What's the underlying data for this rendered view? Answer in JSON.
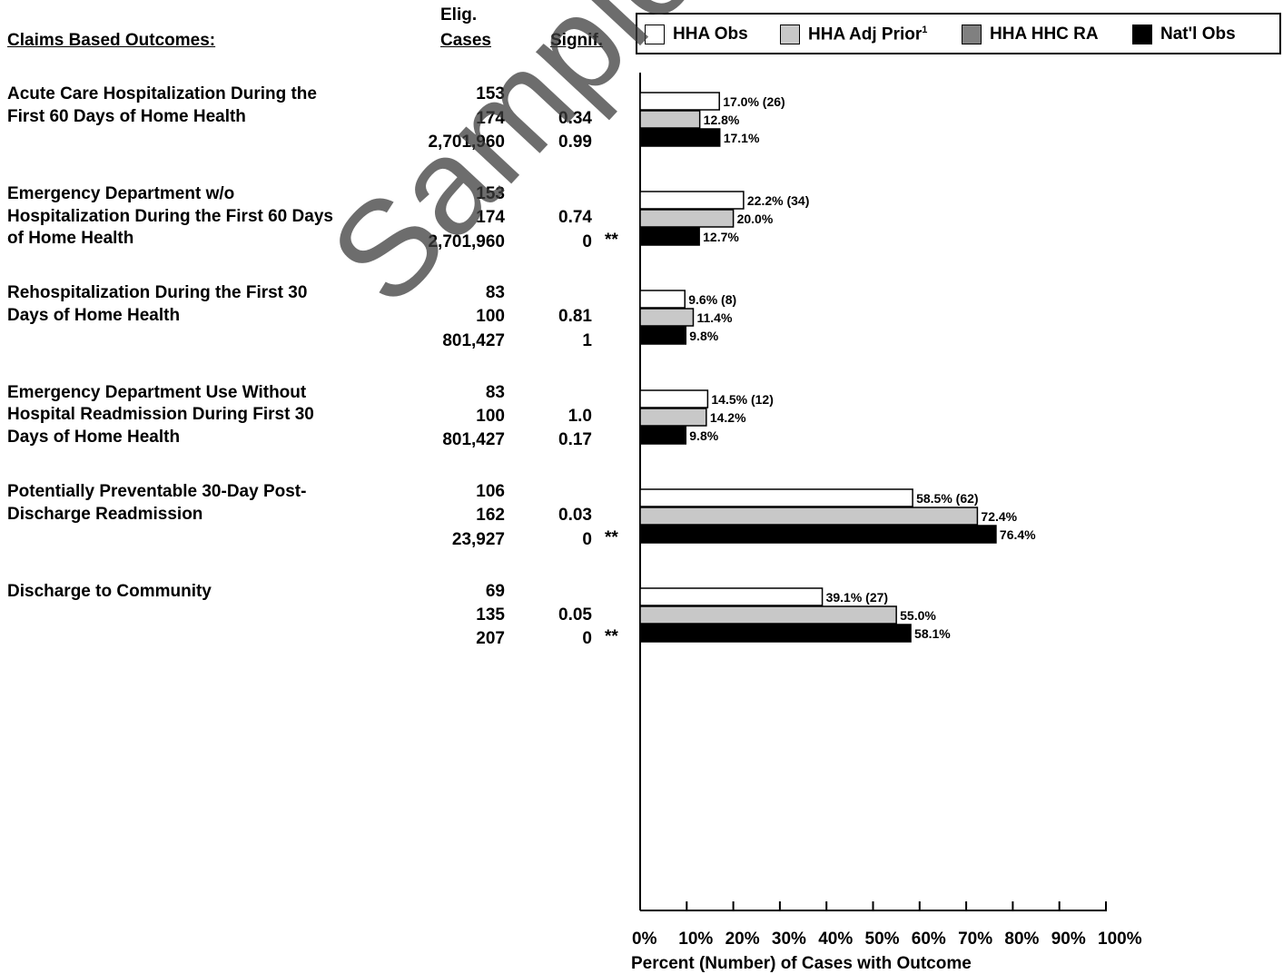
{
  "headers": {
    "outcomes": "Claims Based Outcomes:",
    "elig_line1": "Elig.",
    "elig_line2": "Cases",
    "signif": "Signif."
  },
  "legend": [
    {
      "label": "HHA Obs",
      "sup": "",
      "color": "#ffffff"
    },
    {
      "label": "HHA Adj Prior",
      "sup": "1",
      "color": "#c8c8c8"
    },
    {
      "label": "HHA HHC RA",
      "sup": "",
      "color": "#808080"
    },
    {
      "label": "Nat'l Obs",
      "sup": "",
      "color": "#000000"
    }
  ],
  "outcomes": [
    {
      "name_lines": [
        "Acute Care Hospitalization During the",
        "First 60 Days of Home Health"
      ],
      "elig_cases": [
        "153",
        "174",
        "2,701,960"
      ],
      "signif": [
        "",
        "0.34",
        "0.99"
      ],
      "stars": [
        "",
        "",
        ""
      ]
    },
    {
      "name_lines": [
        "Emergency Department w/o",
        "Hospitalization During the First 60 Days",
        "of Home Health"
      ],
      "elig_cases": [
        "153",
        "174",
        "2,701,960"
      ],
      "signif": [
        "",
        "0.74",
        "0"
      ],
      "stars": [
        "",
        "",
        "**"
      ]
    },
    {
      "name_lines": [
        "Rehospitalization During the First 30",
        "Days of Home Health"
      ],
      "elig_cases": [
        "83",
        "100",
        "801,427"
      ],
      "signif": [
        "",
        "0.81",
        "1"
      ],
      "stars": [
        "",
        "",
        ""
      ]
    },
    {
      "name_lines": [
        "Emergency Department Use Without",
        "Hospital Readmission During First 30",
        "Days of Home Health"
      ],
      "elig_cases": [
        "83",
        "100",
        "801,427"
      ],
      "signif": [
        "",
        "1.0",
        "0.17"
      ],
      "stars": [
        "",
        "",
        ""
      ]
    },
    {
      "name_lines": [
        "Potentially Preventable 30-Day Post-",
        "Discharge Readmission"
      ],
      "elig_cases": [
        "106",
        "162",
        "23,927"
      ],
      "signif": [
        "",
        "0.03",
        "0"
      ],
      "stars": [
        "",
        "",
        "**"
      ]
    },
    {
      "name_lines": [
        "Discharge to Community"
      ],
      "elig_cases": [
        "69",
        "135",
        "207"
      ],
      "signif": [
        "",
        "0.05",
        "0"
      ],
      "stars": [
        "",
        "",
        "**"
      ]
    }
  ],
  "chart_data": {
    "type": "bar",
    "orientation": "horizontal",
    "xlabel": "Percent (Number) of Cases with Outcome",
    "xlim": [
      0,
      100
    ],
    "x_ticks": [
      "0%",
      "10%",
      "20%",
      "30%",
      "40%",
      "50%",
      "60%",
      "70%",
      "80%",
      "90%",
      "100%"
    ],
    "grid": false,
    "legend_position": "top",
    "categories": [
      "Acute Care Hospitalization During the First 60 Days of Home Health",
      "Emergency Department w/o Hospitalization During the First 60 Days of Home Health",
      "Rehospitalization During the First 30 Days of Home Health",
      "Emergency Department Use Without Hospital Readmission During First 30 Days of Home Health",
      "Potentially Preventable 30-Day Post-Discharge Readmission",
      "Discharge to Community"
    ],
    "series": [
      {
        "name": "HHA Obs",
        "color": "#ffffff",
        "values": [
          17.0,
          22.2,
          9.6,
          14.5,
          58.5,
          39.1
        ],
        "labels": [
          "17.0% (26)",
          "22.2% (34)",
          "9.6% (8)",
          "14.5% (12)",
          "58.5% (62)",
          "39.1% (27)"
        ]
      },
      {
        "name": "HHA Adj Prior",
        "color": "#c8c8c8",
        "values": [
          12.8,
          20.0,
          11.4,
          14.2,
          72.4,
          55.0
        ],
        "labels": [
          "12.8%",
          "20.0%",
          "11.4%",
          "14.2%",
          "72.4%",
          "55.0%"
        ]
      },
      {
        "name": "Nat'l Obs",
        "color": "#000000",
        "values": [
          17.1,
          12.7,
          9.8,
          9.8,
          76.4,
          58.1
        ],
        "labels": [
          "17.1%",
          "12.7%",
          "9.8%",
          "9.8%",
          "76.4%",
          "58.1%"
        ]
      }
    ]
  },
  "watermark": "Sample Report"
}
